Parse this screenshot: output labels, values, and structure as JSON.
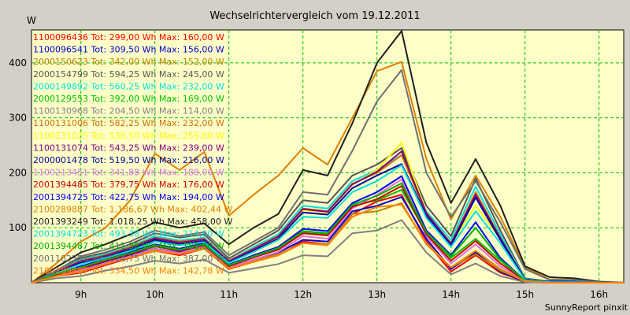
{
  "chart_data": {
    "type": "line",
    "title": "Wechselrichtervergleich vom 19.12.2011",
    "ylabel": "W",
    "xlabel": "",
    "footer": "SunnyReport pinxit",
    "x_hours": [
      8.333,
      8.667,
      9.0,
      9.333,
      9.667,
      10.0,
      10.333,
      10.667,
      11.0,
      11.333,
      11.667,
      12.0,
      12.333,
      12.667,
      13.0,
      13.333,
      13.667,
      14.0,
      14.333,
      14.667,
      15.0,
      15.333,
      15.667,
      16.0,
      16.333
    ],
    "xlim": [
      8.333,
      16.333
    ],
    "ylim": [
      0,
      460
    ],
    "x_ticks": [
      9,
      10,
      11,
      12,
      13,
      14,
      15,
      16
    ],
    "x_tick_labels": [
      "9h",
      "10h",
      "11h",
      "12h",
      "13h",
      "14h",
      "15h",
      "16h"
    ],
    "y_ticks": [
      100,
      200,
      300,
      400
    ],
    "y_tick_labels": [
      "100",
      "200",
      "300",
      "400"
    ],
    "grid": true,
    "legend_position": "top-left",
    "series": [
      {
        "name": "1100096436 Tot: 299,00 Wh Max: 160,00 W",
        "color": "#ff0000",
        "values": [
          0,
          12,
          18,
          32,
          45,
          58,
          50,
          62,
          25,
          38,
          50,
          75,
          70,
          125,
          148,
          160,
          75,
          20,
          50,
          18,
          2,
          0,
          0,
          0,
          0
        ]
      },
      {
        "name": "1100096541 Tot: 309,50 Wh Max: 156,00 W",
        "color": "#0000cc",
        "values": [
          0,
          15,
          22,
          38,
          50,
          62,
          55,
          68,
          28,
          42,
          55,
          78,
          75,
          130,
          140,
          156,
          80,
          25,
          55,
          20,
          2,
          0,
          0,
          0,
          0
        ]
      },
      {
        "name": "2000150623 Tot: 342,00 Wh Max: 152,00 W",
        "color": "#c08000",
        "values": [
          0,
          14,
          20,
          35,
          48,
          60,
          52,
          65,
          27,
          40,
          52,
          72,
          70,
          125,
          130,
          145,
          70,
          28,
          52,
          22,
          3,
          0,
          0,
          0,
          0
        ]
      },
      {
        "name": "2000154799 Tot: 594,25 Wh Max: 245,00 W",
        "color": "#555555",
        "values": [
          0,
          22,
          45,
          55,
          70,
          90,
          82,
          88,
          44,
          70,
          95,
          150,
          145,
          195,
          215,
          245,
          140,
          85,
          190,
          95,
          8,
          2,
          2,
          0,
          0
        ]
      },
      {
        "name": "2000149892 Tot: 560,25 Wh Max: 232,00 W",
        "color": "#00e0e0",
        "values": [
          0,
          20,
          42,
          52,
          66,
          85,
          77,
          82,
          40,
          65,
          88,
          140,
          135,
          185,
          205,
          232,
          130,
          78,
          175,
          88,
          7,
          2,
          2,
          0,
          0
        ]
      },
      {
        "name": "2000129553 Tot: 392,00 Wh Max: 169,00 W",
        "color": "#00c000",
        "values": [
          0,
          16,
          28,
          42,
          55,
          68,
          60,
          70,
          32,
          48,
          62,
          92,
          88,
          140,
          150,
          169,
          90,
          45,
          80,
          40,
          4,
          0,
          0,
          0,
          0
        ]
      },
      {
        "name": "1100130968 Tot: 204,50 Wh Max: 114,00 W",
        "color": "#808080",
        "values": [
          0,
          8,
          12,
          22,
          30,
          40,
          35,
          42,
          18,
          26,
          34,
          50,
          48,
          90,
          95,
          114,
          55,
          15,
          35,
          12,
          1,
          0,
          0,
          0,
          0
        ]
      },
      {
        "name": "1100131006 Tot: 582,25 Wh Max: 232,00 W",
        "color": "#d07000",
        "values": [
          0,
          20,
          40,
          50,
          65,
          82,
          75,
          80,
          40,
          62,
          85,
          135,
          130,
          180,
          200,
          232,
          125,
          72,
          165,
          82,
          6,
          2,
          2,
          0,
          0
        ]
      },
      {
        "name": "1100131025 Tot: 536,50 Wh Max: 255,00 W",
        "color": "#ffff00",
        "values": [
          0,
          18,
          38,
          48,
          62,
          80,
          72,
          78,
          38,
          60,
          82,
          132,
          128,
          178,
          205,
          255,
          128,
          70,
          140,
          80,
          6,
          2,
          2,
          0,
          0
        ]
      },
      {
        "name": "1100131074 Tot: 543,25 Wh Max: 239,00 W",
        "color": "#800080",
        "values": [
          0,
          19,
          39,
          49,
          63,
          81,
          73,
          79,
          39,
          61,
          84,
          134,
          129,
          179,
          202,
          239,
          127,
          71,
          160,
          81,
          6,
          2,
          2,
          0,
          0
        ]
      },
      {
        "name": "2000001478 Tot: 519,50 Wh Max: 216,00 W",
        "color": "#0000a0",
        "values": [
          0,
          18,
          36,
          46,
          60,
          78,
          70,
          76,
          37,
          58,
          80,
          128,
          124,
          172,
          195,
          216,
          122,
          68,
          155,
          78,
          6,
          2,
          2,
          0,
          0
        ]
      },
      {
        "name": "1100213451 Tot: 341,88 Wh Max: 188,00 W",
        "color": "#e070e0",
        "values": [
          0,
          14,
          22,
          36,
          48,
          62,
          54,
          66,
          28,
          42,
          56,
          85,
          80,
          135,
          160,
          188,
          85,
          35,
          70,
          30,
          3,
          0,
          0,
          0,
          0
        ]
      },
      {
        "name": "2001394485 Tot: 379,75 Wh Max: 176,00 W",
        "color": "#cc0000",
        "values": [
          0,
          15,
          26,
          40,
          52,
          66,
          58,
          68,
          30,
          46,
          60,
          90,
          86,
          138,
          152,
          176,
          88,
          40,
          76,
          35,
          4,
          0,
          0,
          0,
          0
        ]
      },
      {
        "name": "2001394725 Tot: 422,75 Wh Max: 194,00 W",
        "color": "#0000ff",
        "values": [
          0,
          16,
          30,
          43,
          56,
          70,
          62,
          72,
          33,
          50,
          65,
          98,
          94,
          145,
          165,
          194,
          95,
          50,
          110,
          45,
          4,
          0,
          0,
          0,
          0
        ]
      },
      {
        "name": "2100289887 Tot: 1.186,67 Wh Max: 402,44 W",
        "color": "#e08000",
        "values": [
          0,
          35,
          75,
          100,
          150,
          235,
          205,
          238,
          122,
          160,
          195,
          245,
          215,
          300,
          385,
          402,
          225,
          115,
          195,
          120,
          28,
          6,
          5,
          1,
          0
        ]
      },
      {
        "name": "2001393249 Tot: 1.018,25 Wh Max: 458,00 W",
        "color": "#202020",
        "values": [
          0,
          28,
          55,
          70,
          88,
          110,
          100,
          108,
          70,
          100,
          125,
          205,
          195,
          290,
          400,
          458,
          255,
          145,
          225,
          140,
          30,
          10,
          8,
          2,
          0
        ]
      },
      {
        "name": "2001394723 Tot: 493,38 Wh Max: 214,00 W",
        "color": "#00dddd",
        "values": [
          0,
          17,
          34,
          45,
          58,
          75,
          68,
          74,
          36,
          56,
          78,
          120,
          118,
          165,
          185,
          214,
          118,
          65,
          130,
          72,
          5,
          1,
          1,
          0,
          0
        ]
      },
      {
        "name": "2001394487 Tot: 411,38 Wh Max: 181,00 W",
        "color": "#00b000",
        "values": [
          0,
          16,
          28,
          42,
          54,
          68,
          60,
          70,
          32,
          48,
          63,
          94,
          90,
          142,
          158,
          181,
          92,
          48,
          100,
          42,
          4,
          0,
          0,
          0,
          0
        ]
      },
      {
        "name": "2001102358 Tot: 614,75 Wh Max: 387,00 W",
        "color": "#707070",
        "values": [
          0,
          22,
          48,
          60,
          75,
          95,
          85,
          92,
          50,
          75,
          100,
          165,
          160,
          240,
          330,
          387,
          200,
          120,
          185,
          110,
          25,
          5,
          5,
          1,
          0
        ]
      },
      {
        "name": "2100289887 Tot: 334,50 Wh Max: 142,78 W",
        "color": "#ff8000",
        "values": [
          0,
          12,
          20,
          34,
          46,
          58,
          52,
          62,
          26,
          38,
          50,
          72,
          68,
          120,
          138,
          142,
          72,
          28,
          58,
          25,
          3,
          0,
          0,
          0,
          0
        ]
      }
    ]
  }
}
